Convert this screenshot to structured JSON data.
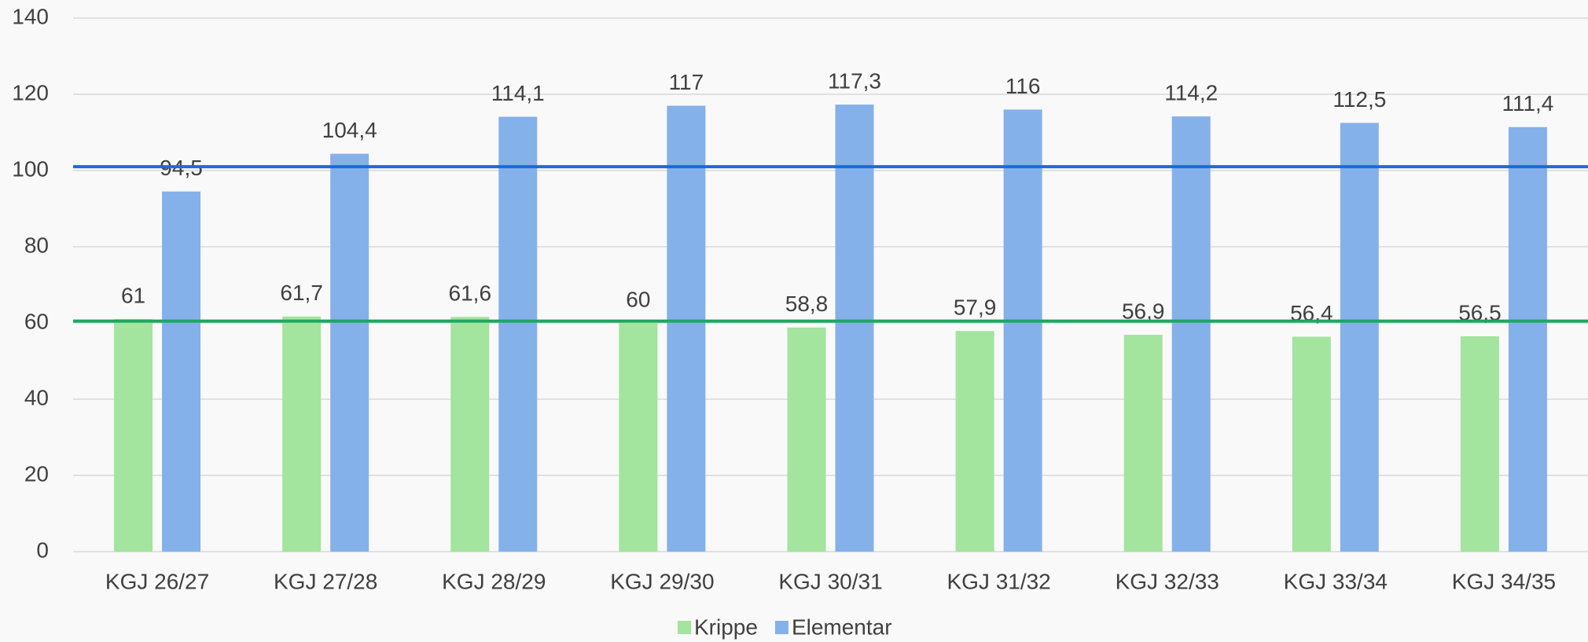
{
  "chart_data": {
    "type": "bar",
    "categories": [
      "KGJ 26/27",
      "KGJ 27/28",
      "KGJ 28/29",
      "KGJ 29/30",
      "KGJ 30/31",
      "KGJ 31/32",
      "KGJ 32/33",
      "KGJ 33/34",
      "KGJ 34/35"
    ],
    "series": [
      {
        "name": "Krippe",
        "color": "#a3e49e",
        "values": [
          61,
          61.7,
          61.6,
          60,
          58.8,
          57.9,
          56.9,
          56.4,
          56.5
        ],
        "value_labels": [
          "61",
          "61,7",
          "61,6",
          "60",
          "58,8",
          "57,9",
          "56,9",
          "56,4",
          "56,5"
        ]
      },
      {
        "name": "Elementar",
        "color": "#85b1ea",
        "values": [
          94.5,
          104.4,
          114.1,
          117,
          117.3,
          116,
          114.2,
          112.5,
          111.4
        ],
        "value_labels": [
          "94,5",
          "104,4",
          "114,1",
          "117",
          "117,3",
          "116",
          "114,2",
          "112,5",
          "111,4"
        ]
      }
    ],
    "reference_lines": [
      {
        "value": 101,
        "color": "#1a6be0"
      },
      {
        "value": 60.5,
        "color": "#1aa860"
      }
    ],
    "ylim": [
      0,
      140
    ],
    "yticks": [
      0,
      20,
      40,
      60,
      80,
      100,
      120,
      140
    ],
    "grid": true,
    "legend": "bottom"
  }
}
